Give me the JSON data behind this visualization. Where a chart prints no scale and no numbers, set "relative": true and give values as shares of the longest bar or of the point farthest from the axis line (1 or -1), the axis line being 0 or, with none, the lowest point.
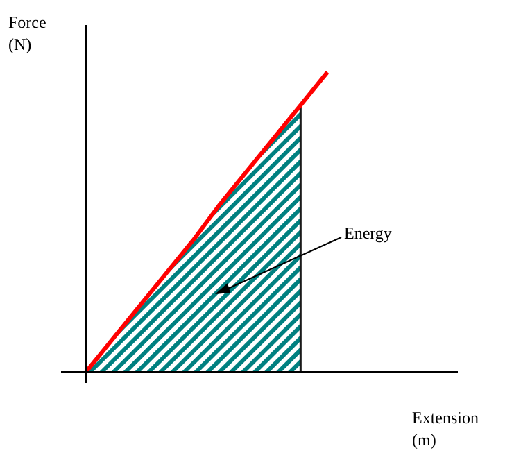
{
  "chart_data": {
    "type": "line",
    "relative": true,
    "xlabel": "Extension (m)",
    "ylabel": "Force (N)",
    "annotations": [
      "Energy"
    ],
    "categories": [
      null,
      null,
      null,
      null,
      null,
      null,
      null,
      null,
      null,
      null
    ],
    "series": [
      {
        "type": "area",
        "color": "#008080",
        "values": [
          0,
          0.11,
          0.22,
          0.33,
          0.44,
          0.56,
          0.67,
          0.78,
          0.89,
          null
        ]
      },
      {
        "type": "line",
        "color": "#ff0000",
        "values": [
          0,
          0.11,
          0.22,
          0.33,
          0.44,
          0.56,
          0.67,
          0.78,
          0.89,
          1
        ]
      }
    ]
  }
}
